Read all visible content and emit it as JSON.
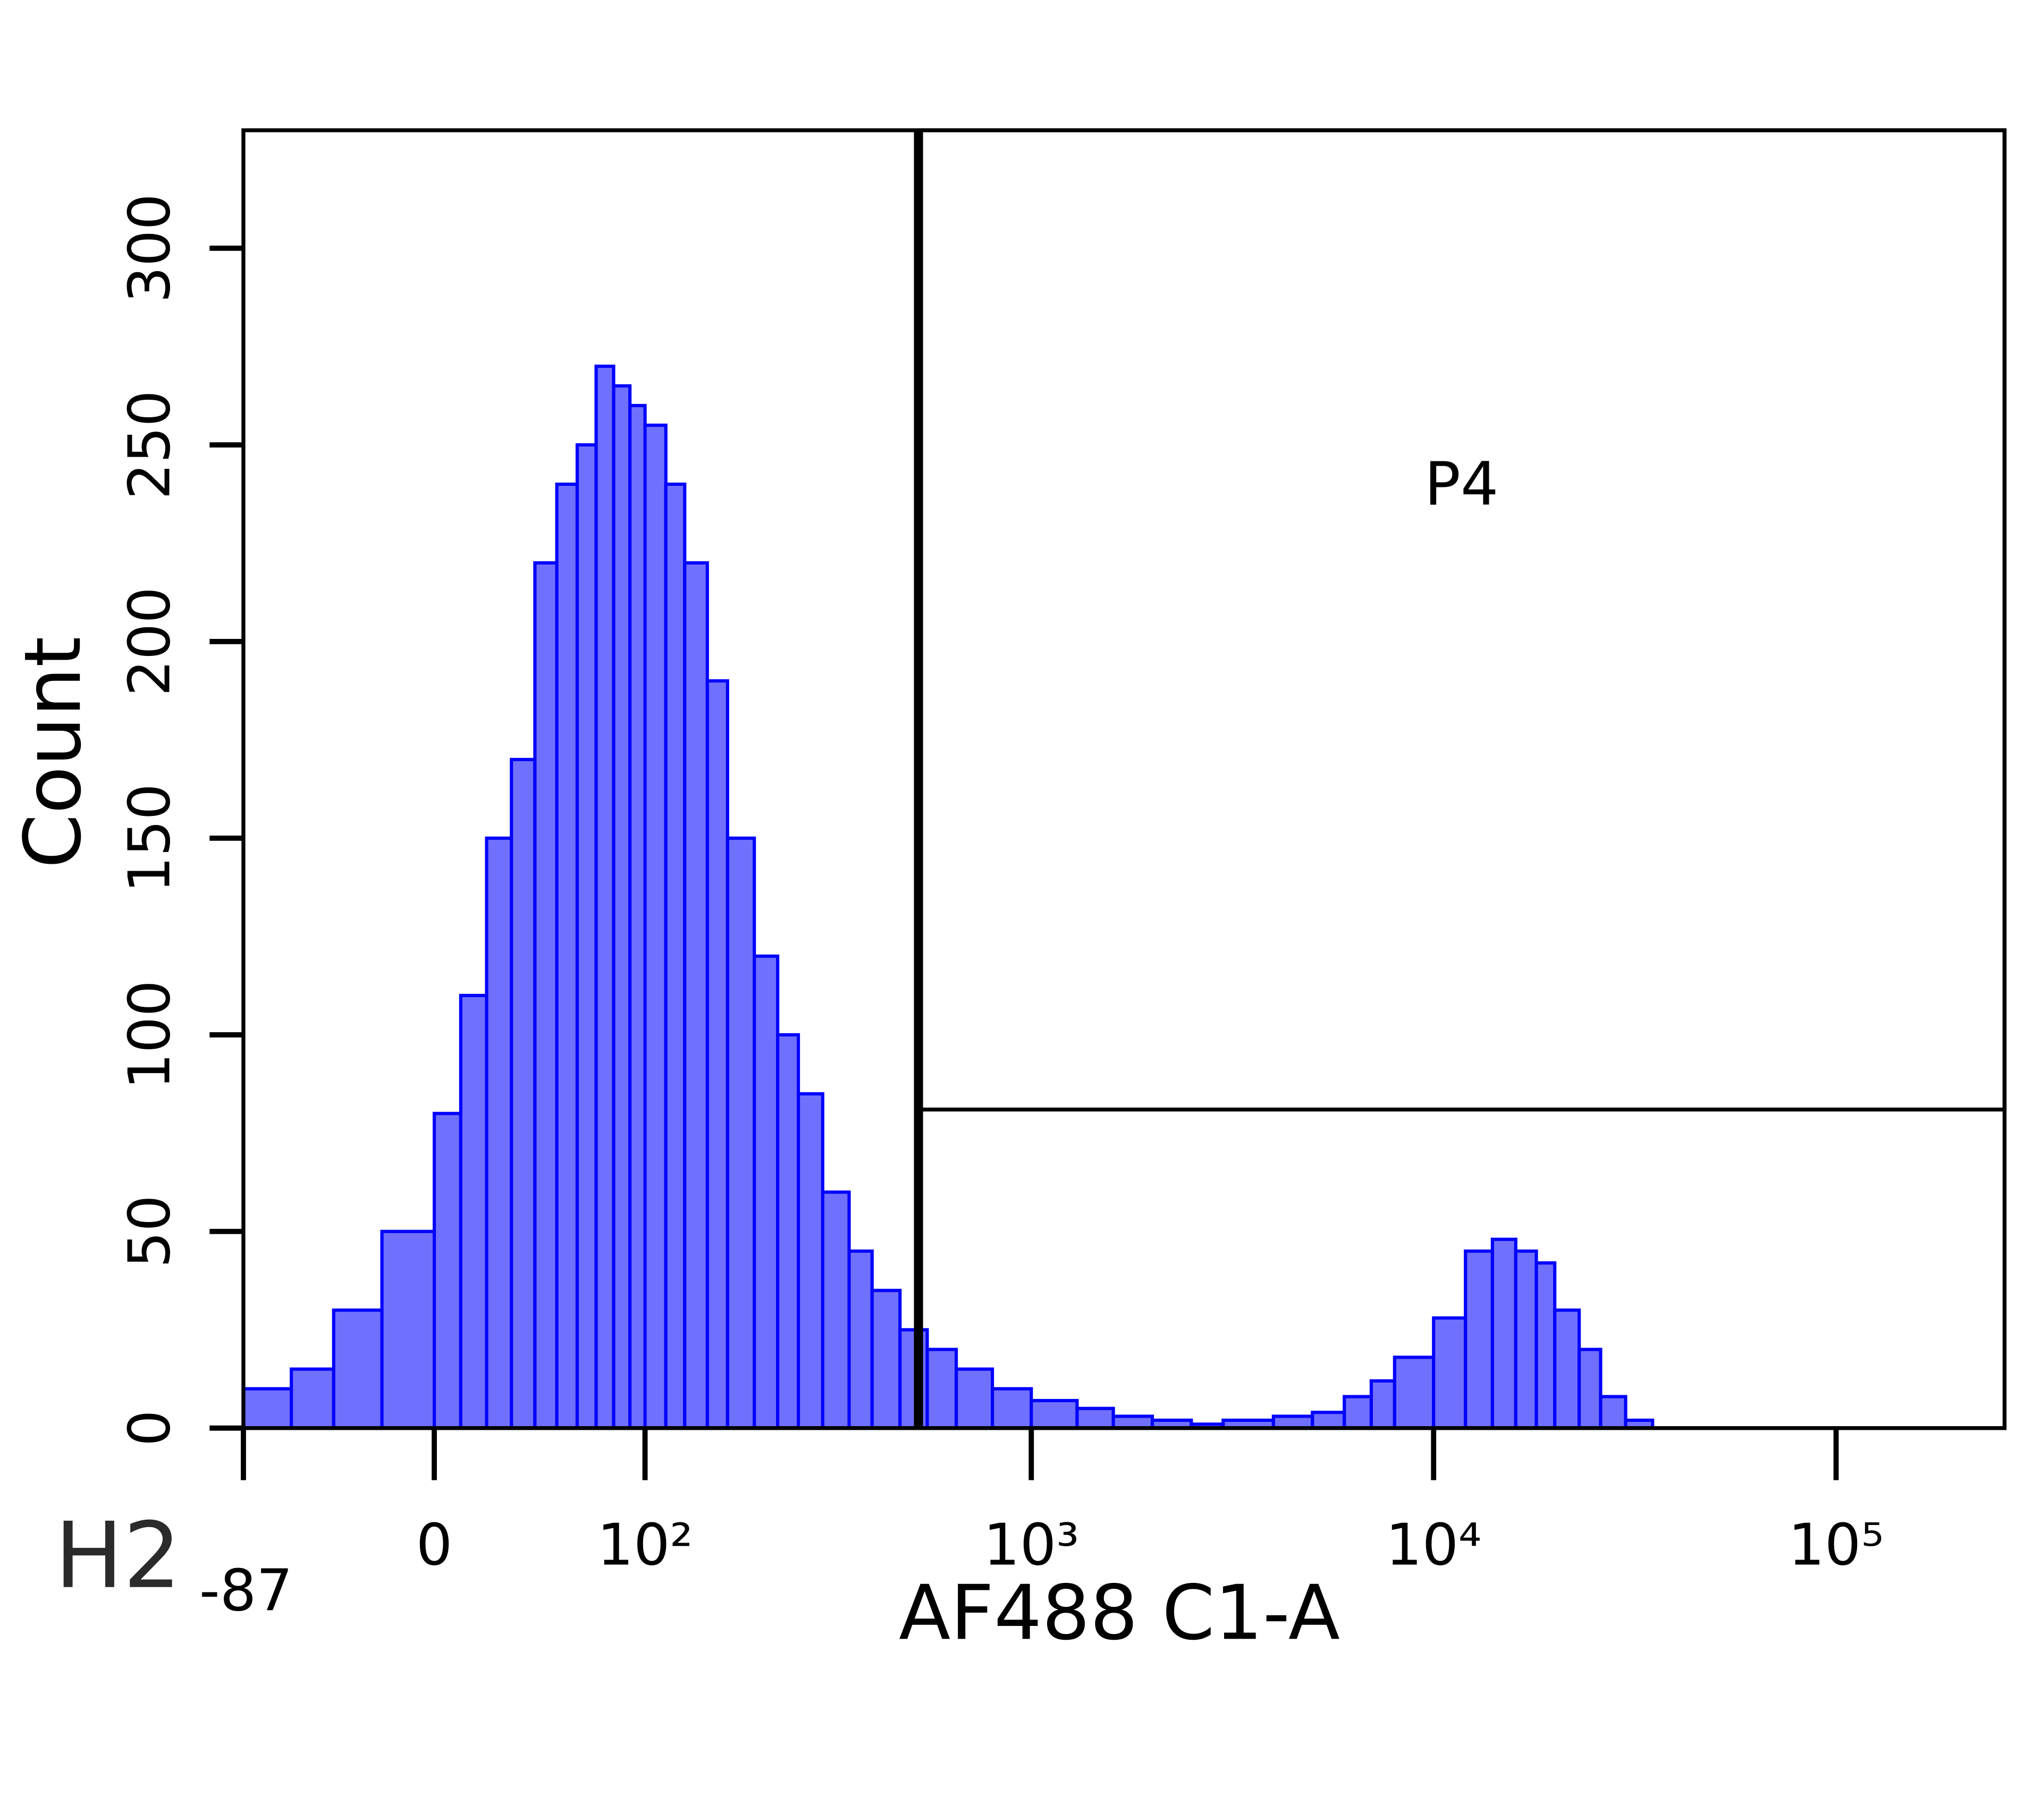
{
  "chart_data": {
    "type": "histogram",
    "x_label": "AF488 C1-A",
    "y_label": "Count",
    "panel_label": "H2",
    "x_scale": "biexponential",
    "color": "#7070ff",
    "edge_color": "#0000ff",
    "bins": [
      -87,
      -60,
      -40,
      -20,
      0,
      10,
      20,
      30,
      40,
      50,
      60,
      70,
      80,
      90,
      100,
      115,
      130,
      150,
      170,
      200,
      230,
      260,
      300,
      350,
      400,
      470,
      550,
      650,
      800,
      1000,
      1300,
      1600,
      2000,
      2500,
      3000,
      4000,
      5000,
      6000,
      7000,
      8000,
      10000,
      12000,
      14000,
      16000,
      18000,
      20000,
      23000,
      26000,
      30000,
      35000,
      40000,
      50000,
      70000,
      100000,
      150000,
      262143
    ],
    "counts": [
      10,
      15,
      30,
      50,
      80,
      110,
      150,
      170,
      220,
      240,
      250,
      270,
      265,
      260,
      255,
      240,
      220,
      190,
      150,
      120,
      100,
      85,
      60,
      45,
      35,
      25,
      20,
      15,
      10,
      7,
      5,
      3,
      2,
      1,
      2,
      3,
      4,
      8,
      12,
      18,
      28,
      45,
      48,
      45,
      42,
      30,
      20,
      8,
      2,
      0,
      0,
      0,
      0,
      0,
      0
    ],
    "xlim": [
      -87,
      262143
    ],
    "ylim": [
      0,
      330
    ],
    "xticks": [
      -87,
      0,
      {
        "value": 100,
        "label": "10²"
      },
      {
        "value": 1000,
        "label": "10³"
      },
      {
        "value": 10000,
        "label": "10⁴"
      },
      {
        "value": 100000,
        "label": "10⁵"
      }
    ],
    "yticks": [
      0,
      50,
      100,
      150,
      200,
      250,
      300
    ],
    "gates": [
      {
        "name": "P4",
        "x": [
          523,
          262143
        ],
        "y": [
          81,
          330
        ]
      }
    ]
  }
}
